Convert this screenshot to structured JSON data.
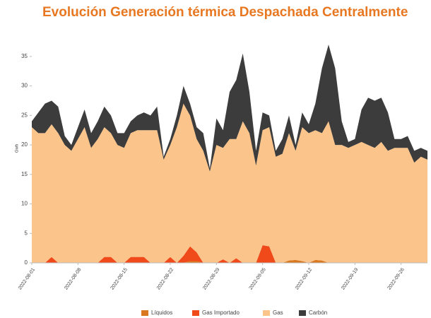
{
  "chart_data": {
    "type": "stacked_area",
    "title": "Evolución Generación térmica Despachada Centralmente",
    "ylabel": "Gwh",
    "x": [
      "2022-08-01",
      "2022-08-02",
      "2022-08-03",
      "2022-08-04",
      "2022-08-05",
      "2022-08-06",
      "2022-08-07",
      "2022-08-08",
      "2022-08-09",
      "2022-08-10",
      "2022-08-11",
      "2022-08-12",
      "2022-08-13",
      "2022-08-14",
      "2022-08-15",
      "2022-08-16",
      "2022-08-17",
      "2022-08-18",
      "2022-08-19",
      "2022-08-20",
      "2022-08-21",
      "2022-08-22",
      "2022-08-23",
      "2022-08-24",
      "2022-08-25",
      "2022-08-26",
      "2022-08-27",
      "2022-08-28",
      "2022-08-29",
      "2022-08-30",
      "2022-08-31",
      "2022-09-01",
      "2022-09-02",
      "2022-09-03",
      "2022-09-04",
      "2022-09-05",
      "2022-09-06",
      "2022-09-07",
      "2022-09-08",
      "2022-09-09",
      "2022-09-10",
      "2022-09-11",
      "2022-09-12",
      "2022-09-13",
      "2022-09-14",
      "2022-09-15",
      "2022-09-16",
      "2022-09-17",
      "2022-09-18",
      "2022-09-19",
      "2022-09-20",
      "2022-09-21",
      "2022-09-22",
      "2022-09-23",
      "2022-09-24",
      "2022-09-25",
      "2022-09-26",
      "2022-09-27",
      "2022-09-28",
      "2022-09-29",
      "2022-09-30"
    ],
    "xticks": [
      "2022-08-01",
      "2022-08-08",
      "2022-08-15",
      "2022-08-22",
      "2022-08-29",
      "2022-09-05",
      "2022-09-12",
      "2022-09-19",
      "2022-09-26"
    ],
    "ylim": [
      0,
      37.5
    ],
    "yticks": [
      0,
      5,
      10,
      15,
      20,
      25,
      30,
      35
    ],
    "legend": "bottom",
    "series": [
      {
        "name": "Líquidos",
        "color": "#d9781f",
        "values": [
          0,
          0,
          0,
          0,
          0,
          0,
          0,
          0,
          0,
          0,
          0,
          0,
          0,
          0,
          0,
          0,
          0,
          0,
          0,
          0,
          0,
          0,
          0,
          0,
          0.3,
          0.3,
          0,
          0,
          0,
          0,
          0,
          0,
          0,
          0,
          0,
          0,
          0,
          0,
          0,
          0.4,
          0.5,
          0.3,
          0,
          0.5,
          0.4,
          0,
          0,
          0,
          0,
          0,
          0,
          0,
          0,
          0,
          0,
          0,
          0,
          0,
          0,
          0,
          0
        ]
      },
      {
        "name": "Gas Importado",
        "color": "#f04a1a",
        "values": [
          0,
          0,
          0,
          1,
          0,
          0,
          0,
          0,
          0,
          0,
          0,
          1,
          1,
          0,
          0,
          1,
          1,
          1,
          0,
          0,
          0,
          1,
          0,
          1.2,
          2.5,
          1.5,
          0,
          0,
          0,
          0.6,
          0,
          0.8,
          0,
          0,
          0,
          3,
          2.8,
          0,
          0,
          0,
          0,
          0,
          0,
          0,
          0,
          0,
          0,
          0,
          0,
          0,
          0,
          0,
          0,
          0,
          0,
          0,
          0,
          0,
          0,
          0,
          0
        ]
      },
      {
        "name": "Gas",
        "color": "#fbc48a",
        "values": [
          23,
          22,
          22,
          22.5,
          22,
          20,
          19,
          21,
          23,
          19.5,
          21,
          22,
          21,
          20,
          19.5,
          21,
          21.5,
          21.5,
          22.5,
          22.5,
          17.5,
          19,
          23,
          25.8,
          22.2,
          19.2,
          19,
          15.5,
          20,
          18.9,
          21,
          20.2,
          24,
          22,
          16.5,
          19.5,
          20.2,
          18,
          18.5,
          21.6,
          18.5,
          22.7,
          22,
          22,
          21.6,
          24,
          20,
          20,
          19.5,
          20,
          20.5,
          20,
          19.5,
          20.5,
          19,
          19.5,
          19.5,
          19.5,
          17,
          18,
          17.5
        ]
      },
      {
        "name": "Carbón",
        "color": "#3c3c3c",
        "values": [
          1,
          3.5,
          5,
          4,
          4.5,
          1.5,
          1,
          2,
          3,
          2.5,
          3,
          3.5,
          3,
          2,
          2.5,
          2,
          2.5,
          3,
          2.5,
          4,
          0.5,
          1,
          2,
          3,
          2,
          2,
          3,
          0.5,
          4.5,
          3,
          8,
          10,
          11.5,
          7,
          2.5,
          3,
          2,
          1,
          2.5,
          3,
          1,
          2.5,
          1.5,
          4.5,
          11,
          13,
          13,
          4,
          1,
          1,
          5.5,
          8,
          8,
          7.5,
          6.5,
          1.5,
          1.5,
          2,
          2,
          1.5,
          1.5
        ]
      }
    ]
  }
}
